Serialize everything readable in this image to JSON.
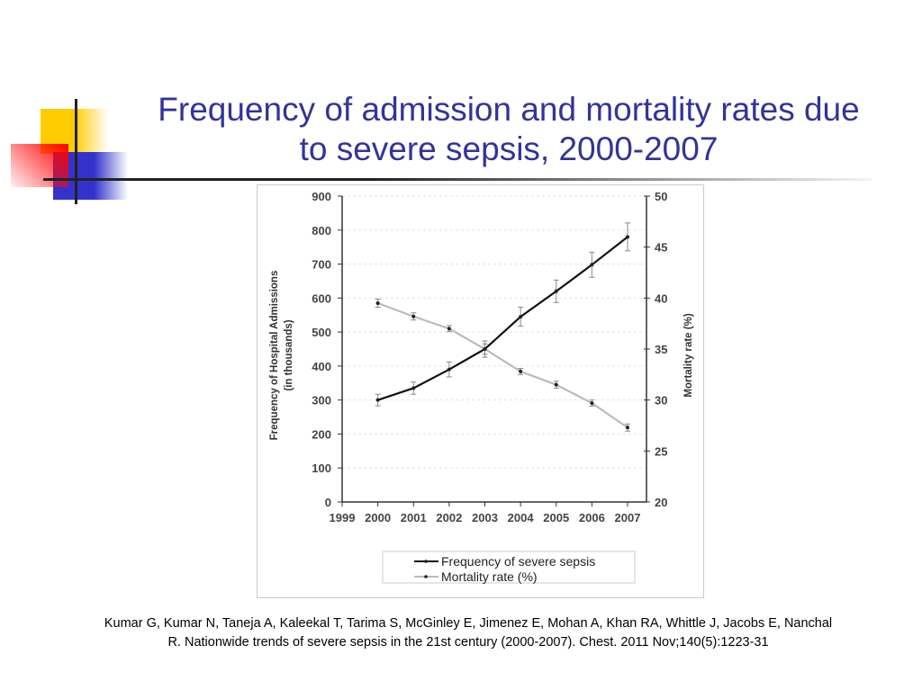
{
  "title_line1": "Frequency of admission and mortality rates due",
  "title_line2": "to severe sepsis, 2000-2007",
  "citation_line1": "Kumar G, Kumar N, Taneja A, Kaleekal T, Tarima S, McGinley E, Jimenez E, Mohan A, Khan RA, Whittle J, Jacobs E, Nanchal",
  "citation_line2": "R. Nationwide trends of severe sepsis in the 21st century (2000-2007). Chest. 2011 Nov;140(5):1223-31",
  "colors": {
    "title": "#333399",
    "yellow": "#ffcc00",
    "red": "#ff0000",
    "blue": "#3333cc"
  },
  "chart_data": {
    "type": "line",
    "x_ticks": [
      "1999",
      "2000",
      "2001",
      "2002",
      "2003",
      "2004",
      "2005",
      "2006",
      "2007"
    ],
    "xlim": [
      1999,
      2007
    ],
    "ylabel": "Frequency of Hospital Admissions",
    "ylabel2": "(in thousands)",
    "y2label": "Mortality rate (%)",
    "ylim": [
      0,
      900
    ],
    "y_ticks": [
      "0",
      "100",
      "200",
      "300",
      "400",
      "500",
      "600",
      "700",
      "800",
      "900"
    ],
    "y2lim": [
      20,
      50
    ],
    "y2_ticks": [
      "20",
      "25",
      "30",
      "35",
      "40",
      "45",
      "50"
    ],
    "grid": true,
    "legend_position": "bottom",
    "series": [
      {
        "name": "Frequency of severe sepsis",
        "axis": "left",
        "color": "#111111",
        "x": [
          2000,
          2001,
          2002,
          2003,
          2004,
          2005,
          2006,
          2007
        ],
        "values": [
          300,
          335,
          390,
          450,
          545,
          620,
          698,
          780
        ],
        "errors": [
          17,
          18,
          22,
          24,
          28,
          33,
          37,
          41
        ]
      },
      {
        "name": "Mortality rate (%)",
        "axis": "right",
        "color": "#bbbbbb",
        "x": [
          2000,
          2001,
          2002,
          2003,
          2004,
          2005,
          2006,
          2007
        ],
        "values": [
          39.5,
          38.2,
          37.0,
          35.0,
          32.8,
          31.5,
          29.7,
          27.3
        ],
        "errors": [
          0.4,
          0.35,
          0.3,
          0.5,
          0.3,
          0.35,
          0.3,
          0.35
        ]
      }
    ]
  }
}
